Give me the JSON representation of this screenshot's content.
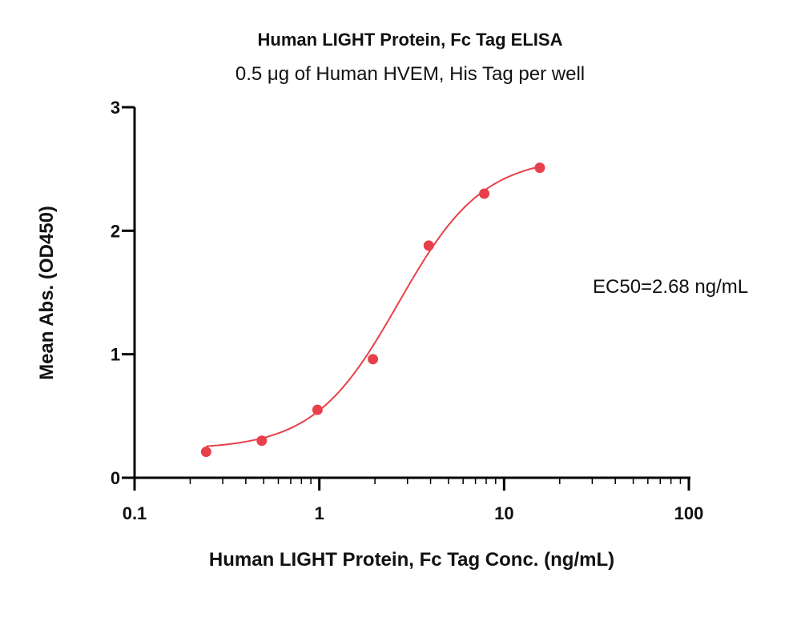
{
  "chart_data": {
    "type": "scatter",
    "title": "Human LIGHT Protein, Fc Tag ELISA",
    "subtitle": "0.5 μg of Human HVEM, His Tag per well",
    "xlabel": "Human LIGHT Protein, Fc Tag Conc. (ng/mL)",
    "ylabel": "Mean Abs. (OD450)",
    "xscale": "log",
    "xlim": [
      0.1,
      100
    ],
    "ylim": [
      0,
      3
    ],
    "xticks": [
      {
        "value": 0.1,
        "label": "0.1"
      },
      {
        "value": 1,
        "label": "1"
      },
      {
        "value": 10,
        "label": "10"
      },
      {
        "value": 100,
        "label": "100"
      }
    ],
    "yticks": [
      {
        "value": 0,
        "label": "0"
      },
      {
        "value": 1,
        "label": "1"
      },
      {
        "value": 2,
        "label": "2"
      },
      {
        "value": 3,
        "label": "3"
      }
    ],
    "grid": false,
    "series": [
      {
        "color": "#e8404a",
        "x": [
          0.244,
          0.488,
          0.977,
          1.95,
          3.91,
          7.81,
          15.6
        ],
        "y": [
          0.21,
          0.3,
          0.55,
          0.96,
          1.88,
          2.3,
          2.51
        ],
        "fit": {
          "bottom": 0.23,
          "top": 2.6,
          "ec50": 2.68,
          "hill": 1.9
        }
      }
    ],
    "annotations": [
      {
        "text": "EC50=2.68 ng/mL",
        "position": "right"
      }
    ]
  }
}
